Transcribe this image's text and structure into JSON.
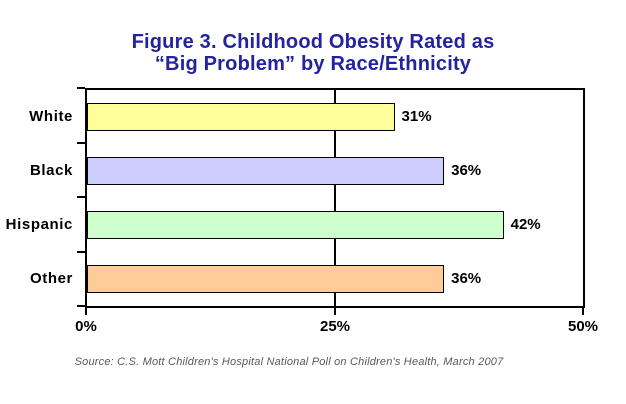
{
  "title": {
    "line1": "Figure 3. Childhood Obesity Rated as",
    "line2": "“Big Problem” by Race/Ethnicity"
  },
  "source_note": "Source: C.S. Mott Children's Hospital National Poll on Children's Health, March 2007",
  "chart_data": {
    "type": "bar",
    "orientation": "horizontal",
    "title": "Figure 3. Childhood Obesity Rated as “Big Problem” by Race/Ethnicity",
    "categories": [
      "White",
      "Black",
      "Hispanic",
      "Other"
    ],
    "values": [
      31,
      36,
      42,
      36
    ],
    "value_labels": [
      "31%",
      "36%",
      "42%",
      "36%"
    ],
    "bar_colors": [
      "#ffff99",
      "#ccccff",
      "#ccffcc",
      "#ffcc99"
    ],
    "xlim": [
      0,
      50
    ],
    "x_ticks": [
      {
        "label": "0%",
        "value": 0
      },
      {
        "label": "25%",
        "value": 25
      },
      {
        "label": "50%",
        "value": 50
      }
    ],
    "gridline_values": [
      25
    ],
    "legend": "none",
    "grid": "vertical-only",
    "source": "Source: C.S. Mott Children's Hospital National Poll on Children's Health, March 2007"
  },
  "colors": {
    "title_text": "#2323a0",
    "bar_border": "#000000",
    "axis": "#000000",
    "source_text": "#595959",
    "background": "#ffffff"
  }
}
